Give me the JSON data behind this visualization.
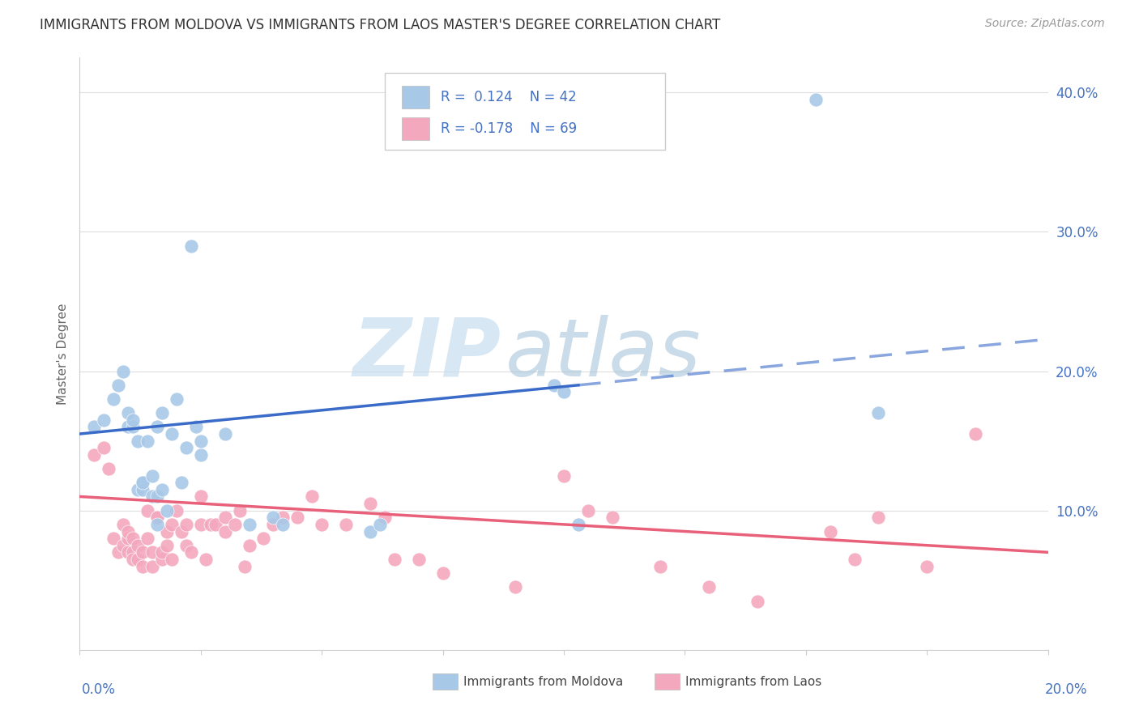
{
  "title": "IMMIGRANTS FROM MOLDOVA VS IMMIGRANTS FROM LAOS MASTER'S DEGREE CORRELATION CHART",
  "source": "Source: ZipAtlas.com",
  "ylabel": "Master's Degree",
  "ylabel_tick_vals": [
    0.1,
    0.2,
    0.3,
    0.4
  ],
  "xlim": [
    0.0,
    0.2
  ],
  "ylim": [
    0.0,
    0.425
  ],
  "color_moldova": "#a8c8e8",
  "color_laos": "#f4a8be",
  "color_trend_moldova": "#3a6bc8",
  "color_trend_laos": "#e8607a",
  "color_text_blue": "#4472c4",
  "moldova_x": [
    0.003,
    0.005,
    0.007,
    0.008,
    0.009,
    0.01,
    0.01,
    0.011,
    0.011,
    0.012,
    0.012,
    0.013,
    0.013,
    0.013,
    0.014,
    0.015,
    0.015,
    0.016,
    0.016,
    0.016,
    0.017,
    0.017,
    0.018,
    0.019,
    0.02,
    0.021,
    0.022,
    0.023,
    0.024,
    0.025,
    0.025,
    0.03,
    0.035,
    0.04,
    0.042,
    0.06,
    0.062,
    0.098,
    0.1,
    0.103,
    0.152,
    0.165
  ],
  "moldova_y": [
    0.16,
    0.165,
    0.18,
    0.19,
    0.2,
    0.16,
    0.17,
    0.16,
    0.165,
    0.15,
    0.115,
    0.12,
    0.115,
    0.12,
    0.15,
    0.125,
    0.11,
    0.11,
    0.09,
    0.16,
    0.115,
    0.17,
    0.1,
    0.155,
    0.18,
    0.12,
    0.145,
    0.29,
    0.16,
    0.14,
    0.15,
    0.155,
    0.09,
    0.095,
    0.09,
    0.085,
    0.09,
    0.19,
    0.185,
    0.09,
    0.395,
    0.17
  ],
  "laos_x": [
    0.003,
    0.005,
    0.006,
    0.007,
    0.008,
    0.009,
    0.009,
    0.01,
    0.01,
    0.01,
    0.011,
    0.011,
    0.011,
    0.012,
    0.012,
    0.013,
    0.013,
    0.014,
    0.014,
    0.015,
    0.015,
    0.016,
    0.016,
    0.017,
    0.017,
    0.018,
    0.018,
    0.019,
    0.019,
    0.02,
    0.021,
    0.022,
    0.022,
    0.023,
    0.025,
    0.025,
    0.026,
    0.027,
    0.028,
    0.03,
    0.03,
    0.032,
    0.033,
    0.034,
    0.035,
    0.038,
    0.04,
    0.042,
    0.045,
    0.048,
    0.05,
    0.055,
    0.06,
    0.063,
    0.065,
    0.07,
    0.075,
    0.09,
    0.1,
    0.105,
    0.11,
    0.12,
    0.13,
    0.14,
    0.155,
    0.16,
    0.165,
    0.175,
    0.185
  ],
  "laos_y": [
    0.14,
    0.145,
    0.13,
    0.08,
    0.07,
    0.09,
    0.075,
    0.07,
    0.08,
    0.085,
    0.07,
    0.08,
    0.065,
    0.065,
    0.075,
    0.06,
    0.07,
    0.1,
    0.08,
    0.07,
    0.06,
    0.095,
    0.095,
    0.065,
    0.07,
    0.075,
    0.085,
    0.065,
    0.09,
    0.1,
    0.085,
    0.09,
    0.075,
    0.07,
    0.11,
    0.09,
    0.065,
    0.09,
    0.09,
    0.095,
    0.085,
    0.09,
    0.1,
    0.06,
    0.075,
    0.08,
    0.09,
    0.095,
    0.095,
    0.11,
    0.09,
    0.09,
    0.105,
    0.095,
    0.065,
    0.065,
    0.055,
    0.045,
    0.125,
    0.1,
    0.095,
    0.06,
    0.045,
    0.035,
    0.085,
    0.065,
    0.095,
    0.06,
    0.155
  ],
  "watermark_zip": "ZIP",
  "watermark_atlas": "atlas",
  "grid_color": "#dddddd",
  "trend_moldova_x0": 0.0,
  "trend_moldova_y0": 0.155,
  "trend_moldova_x1": 0.103,
  "trend_moldova_y1": 0.19,
  "trend_moldova_dash_x0": 0.103,
  "trend_moldova_dash_x1": 0.2,
  "trend_laos_x0": 0.0,
  "trend_laos_y0": 0.11,
  "trend_laos_x1": 0.2,
  "trend_laos_y1": 0.07
}
